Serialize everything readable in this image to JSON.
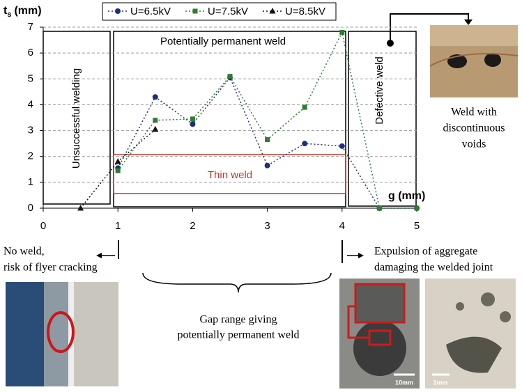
{
  "chart_data": {
    "type": "line",
    "y_label": {
      "main": "t",
      "sub": "s",
      "unit": "(mm)"
    },
    "x_label": "g (mm)",
    "x": [
      0.5,
      1,
      1.5,
      2,
      2.5,
      3,
      3.5,
      4,
      4.5,
      5
    ],
    "series": [
      {
        "name": "U=6.5kV",
        "color": "#1f2f7a",
        "marker": "circle",
        "values": [
          null,
          1.55,
          4.3,
          3.25,
          5.05,
          1.65,
          2.5,
          2.4,
          0,
          0
        ]
      },
      {
        "name": "U=7.5kV",
        "color": "#2e7d32",
        "marker": "square",
        "values": [
          null,
          1.45,
          3.4,
          3.45,
          5.1,
          2.65,
          3.9,
          6.8,
          0,
          0
        ]
      },
      {
        "name": "U=8.5kV",
        "color": "#111111",
        "marker": "triangle",
        "values": [
          0,
          1.8,
          3.05,
          null,
          null,
          null,
          null,
          null,
          null,
          null
        ]
      }
    ],
    "xlim": [
      0,
      5
    ],
    "xticks": [
      0,
      1,
      2,
      3,
      4,
      5
    ],
    "ylim": [
      0,
      7
    ],
    "yticks": [
      0,
      1,
      2,
      3,
      4,
      5,
      6,
      7
    ],
    "grid": true,
    "regions": {
      "unsuccessful": "Unsuccessful  welding",
      "permanent": "Potentially permanent weld",
      "thin": "Thin weld",
      "defective": "Defective weld"
    },
    "annotations": {
      "voids": [
        "Weld with",
        "discontinuous",
        "voids"
      ],
      "no_weld": [
        "No weld,",
        "risk of flyer cracking"
      ],
      "gap_range": [
        "Gap range giving",
        "potentially permanent weld"
      ],
      "expulsion": [
        "Expulsion of aggregate",
        "damaging the welded joint"
      ],
      "scale_a": "10mm",
      "scale_b": "1mm"
    }
  }
}
